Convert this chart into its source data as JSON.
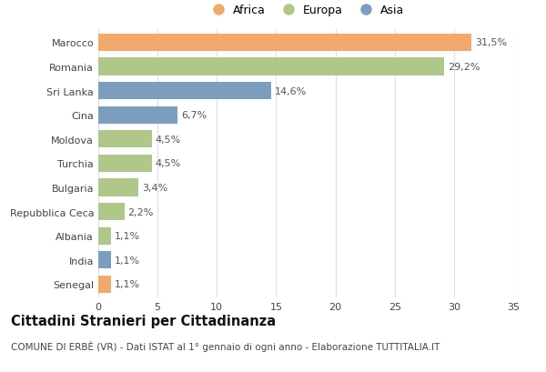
{
  "categories": [
    "Marocco",
    "Romania",
    "Sri Lanka",
    "Cina",
    "Moldova",
    "Turchia",
    "Bulgaria",
    "Repubblica Ceca",
    "Albania",
    "India",
    "Senegal"
  ],
  "values": [
    31.5,
    29.2,
    14.6,
    6.7,
    4.5,
    4.5,
    3.4,
    2.2,
    1.1,
    1.1,
    1.1
  ],
  "labels": [
    "31,5%",
    "29,2%",
    "14,6%",
    "6,7%",
    "4,5%",
    "4,5%",
    "3,4%",
    "2,2%",
    "1,1%",
    "1,1%",
    "1,1%"
  ],
  "continents": [
    "Africa",
    "Europa",
    "Asia",
    "Asia",
    "Europa",
    "Europa",
    "Europa",
    "Europa",
    "Europa",
    "Asia",
    "Africa"
  ],
  "colors": {
    "Africa": "#F2A96B",
    "Europa": "#B0C78A",
    "Asia": "#7B9EBF"
  },
  "xlim": [
    0,
    35
  ],
  "xticks": [
    0,
    5,
    10,
    15,
    20,
    25,
    30,
    35
  ],
  "title": "Cittadini Stranieri per Cittadinanza",
  "subtitle": "COMUNE DI ERBÈ (VR) - Dati ISTAT al 1° gennaio di ogni anno - Elaborazione TUTTITALIA.IT",
  "background_color": "#ffffff",
  "bar_height": 0.72,
  "grid_color": "#e0e0e0",
  "label_fontsize": 8,
  "tick_fontsize": 8,
  "title_fontsize": 10.5,
  "subtitle_fontsize": 7.5,
  "legend_order": [
    "Africa",
    "Europa",
    "Asia"
  ]
}
